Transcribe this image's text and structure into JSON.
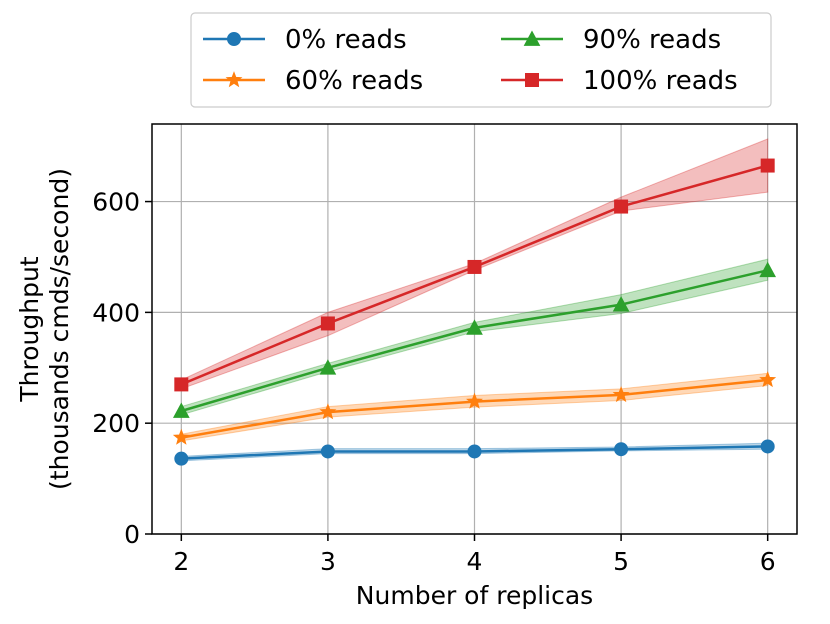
{
  "chart_data": {
    "type": "line",
    "xlabel": "Number of replicas",
    "ylabel_lines": [
      "Throughput",
      "(thousands cmds/second)"
    ],
    "x": [
      2,
      3,
      4,
      5,
      6
    ],
    "xlim": [
      1.8,
      6.2
    ],
    "ylim": [
      0,
      740
    ],
    "xticks": [
      "2",
      "3",
      "4",
      "5",
      "6"
    ],
    "yticks": [
      0,
      200,
      400,
      600
    ],
    "grid": true,
    "legend_position": "top-center, above plot",
    "series": [
      {
        "name": "0% reads",
        "color": "#1f77b4",
        "marker": "circle",
        "values": [
          136,
          149,
          149,
          153,
          158
        ],
        "lower": [
          132,
          145,
          145,
          150,
          153
        ],
        "upper": [
          140,
          154,
          154,
          157,
          164
        ]
      },
      {
        "name": "60% reads",
        "color": "#ff7f0e",
        "marker": "star",
        "values": [
          174,
          220,
          239,
          251,
          278
        ],
        "lower": [
          168,
          211,
          229,
          241,
          268
        ],
        "upper": [
          180,
          230,
          250,
          262,
          290
        ]
      },
      {
        "name": "90% reads",
        "color": "#2ca02c",
        "marker": "triangle",
        "values": [
          222,
          300,
          372,
          414,
          476
        ],
        "lower": [
          215,
          293,
          365,
          398,
          458
        ],
        "upper": [
          230,
          308,
          382,
          432,
          496
        ]
      },
      {
        "name": "100% reads",
        "color": "#d62728",
        "marker": "square",
        "values": [
          270,
          380,
          482,
          591,
          665
        ],
        "lower": [
          262,
          358,
          476,
          583,
          617
        ],
        "upper": [
          278,
          400,
          488,
          608,
          713
        ]
      }
    ]
  }
}
